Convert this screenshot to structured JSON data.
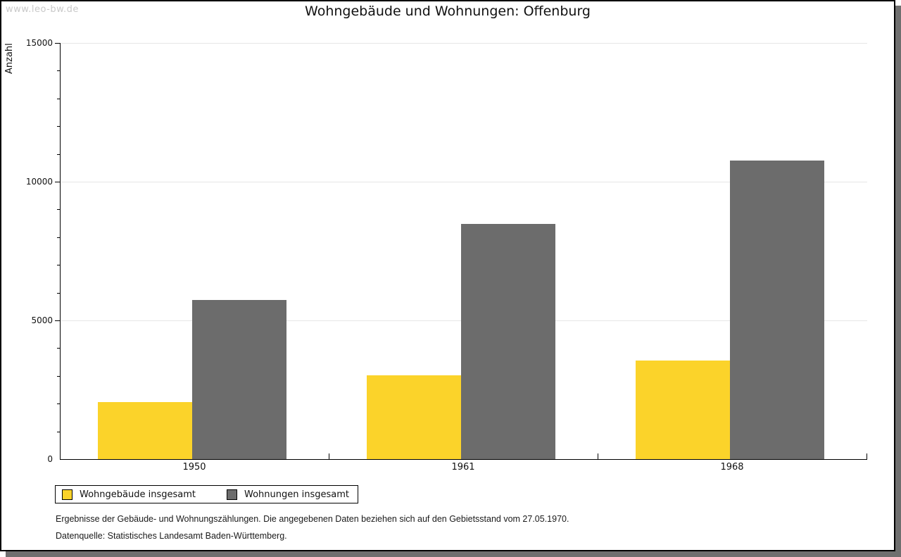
{
  "page": {
    "watermark": "www.leo-bw.de"
  },
  "chart_data": {
    "type": "bar",
    "title": "Wohngebäude und Wohnungen: Offenburg",
    "categories": [
      "1950",
      "1961",
      "1968"
    ],
    "series": [
      {
        "name": "Wohngebäude insgesamt",
        "color": "#FBD32A",
        "values": [
          2050,
          3020,
          3550
        ]
      },
      {
        "name": "Wohnungen insgesamt",
        "color": "#6C6C6C",
        "values": [
          5740,
          8480,
          10760
        ]
      }
    ],
    "xlabel": "",
    "ylabel": "Anzahl",
    "ylim": [
      0,
      15000
    ],
    "yticks": [
      0,
      5000,
      10000,
      15000
    ],
    "minor_tick_step": 1000,
    "grid": "horizontal-major",
    "gridline_color": "#E6E6E6",
    "axis_color": "#000000",
    "legend_position": "bottom-left"
  },
  "colors": {
    "frame_border": "#000000",
    "frame_shadow": "#6F6F6F",
    "watermark": "#C9C9C9"
  },
  "footer": {
    "line1": "Ergebnisse der Gebäude- und Wohnungszählungen. Die angegebenen Daten beziehen sich auf den Gebietsstand vom 27.05.1970.",
    "line2": "Datenquelle: Statistisches Landesamt Baden-Württemberg."
  }
}
